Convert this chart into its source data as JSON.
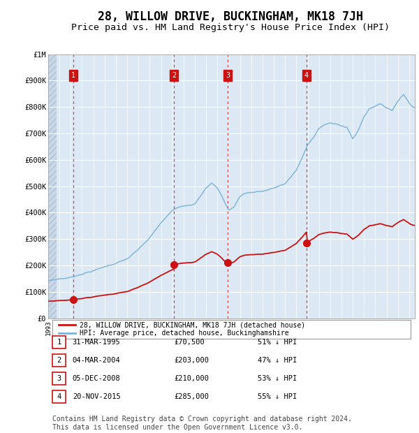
{
  "title": "28, WILLOW DRIVE, BUCKINGHAM, MK18 7JH",
  "subtitle": "Price paid vs. HM Land Registry's House Price Index (HPI)",
  "title_fontsize": 12,
  "subtitle_fontsize": 9.5,
  "bg_color": "#dce9f5",
  "hpi_line_color": "#7ab3d8",
  "price_line_color": "#cc1111",
  "marker_color": "#cc1111",
  "vline_color": "#cc2222",
  "label_box_color": "#cc1111",
  "ylim": [
    0,
    1000000
  ],
  "yticks": [
    0,
    100000,
    200000,
    300000,
    400000,
    500000,
    600000,
    700000,
    800000,
    900000,
    1000000
  ],
  "ytick_labels": [
    "£0",
    "£100K",
    "£200K",
    "£300K",
    "£400K",
    "£500K",
    "£600K",
    "£700K",
    "£800K",
    "£900K",
    "£1M"
  ],
  "sale_dates": [
    1995.21,
    2004.17,
    2008.92,
    2015.9
  ],
  "sale_prices": [
    70500,
    203000,
    210000,
    285000
  ],
  "sale_labels": [
    "1",
    "2",
    "3",
    "4"
  ],
  "legend_label_red": "28, WILLOW DRIVE, BUCKINGHAM, MK18 7JH (detached house)",
  "legend_label_blue": "HPI: Average price, detached house, Buckinghamshire",
  "table_rows": [
    [
      "1",
      "31-MAR-1995",
      "£70,500",
      "51% ↓ HPI"
    ],
    [
      "2",
      "04-MAR-2004",
      "£203,000",
      "47% ↓ HPI"
    ],
    [
      "3",
      "05-DEC-2008",
      "£210,000",
      "53% ↓ HPI"
    ],
    [
      "4",
      "20-NOV-2015",
      "£285,000",
      "55% ↓ HPI"
    ]
  ],
  "footer": "Contains HM Land Registry data © Crown copyright and database right 2024.\nThis data is licensed under the Open Government Licence v3.0.",
  "footer_fontsize": 7,
  "hpi_key_t": [
    1993,
    1993.5,
    1994,
    1994.5,
    1995,
    1995.5,
    1996,
    1997,
    1998,
    1999,
    2000,
    2001,
    2002,
    2003,
    2004,
    2004.5,
    2005,
    2005.5,
    2006,
    2006.5,
    2007.0,
    2007.5,
    2008.0,
    2008.5,
    2009.0,
    2009.5,
    2010,
    2010.5,
    2011,
    2012,
    2013,
    2014,
    2015.0,
    2015.5,
    2016.0,
    2016.5,
    2017,
    2017.5,
    2018,
    2018.5,
    2019,
    2019.5,
    2020.0,
    2020.5,
    2021.0,
    2021.5,
    2022.0,
    2022.5,
    2023.0,
    2023.5,
    2024.0,
    2024.5,
    2025.0,
    2025.4
  ],
  "hpi_key_v": [
    143000,
    146000,
    150000,
    152000,
    155000,
    162000,
    170000,
    182000,
    196000,
    210000,
    225000,
    258000,
    300000,
    355000,
    400000,
    415000,
    422000,
    428000,
    432000,
    460000,
    490000,
    510000,
    490000,
    450000,
    405000,
    420000,
    460000,
    472000,
    475000,
    478000,
    488000,
    505000,
    555000,
    600000,
    648000,
    678000,
    715000,
    728000,
    732000,
    728000,
    722000,
    715000,
    672000,
    705000,
    758000,
    790000,
    800000,
    805000,
    792000,
    782000,
    820000,
    845000,
    812000,
    798000
  ]
}
